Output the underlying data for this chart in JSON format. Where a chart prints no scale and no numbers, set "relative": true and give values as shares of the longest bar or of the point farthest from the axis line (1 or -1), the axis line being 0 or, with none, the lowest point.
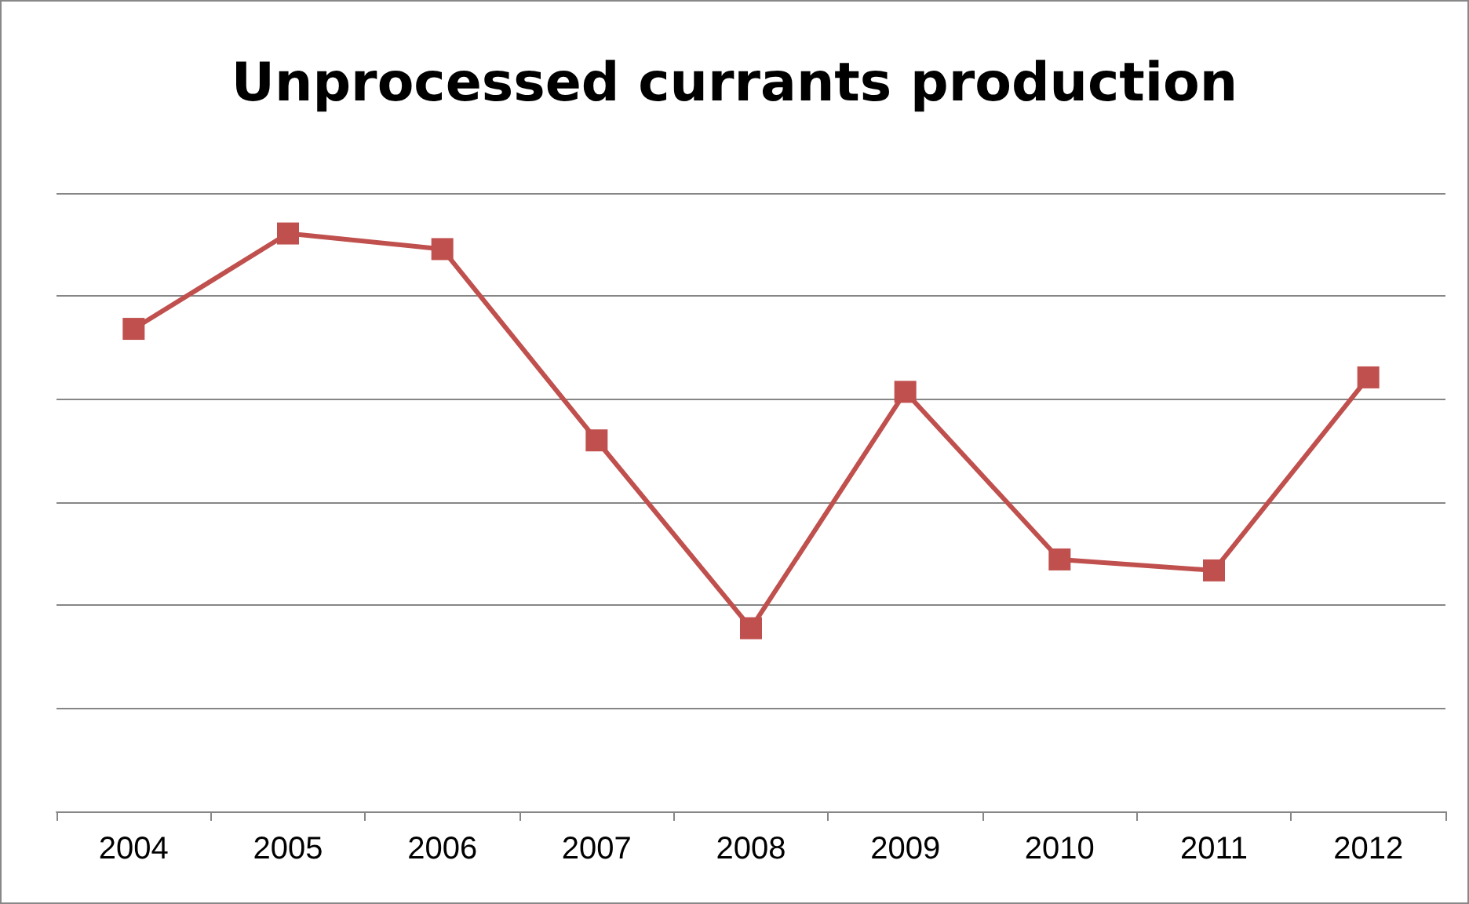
{
  "chart_data": {
    "type": "line",
    "title": "Unprocessed currants production",
    "categories": [
      "2004",
      "2005",
      "2006",
      "2007",
      "2008",
      "2009",
      "2010",
      "2011",
      "2012"
    ],
    "series": [
      {
        "color": "#c0504d",
        "values": [
          0.835,
          1,
          0.973,
          0.642,
          0.317,
          0.726,
          0.436,
          0.417,
          0.751
        ]
      }
    ],
    "relative": true,
    "grid": "y",
    "marker": "square",
    "line_style": "solid"
  }
}
